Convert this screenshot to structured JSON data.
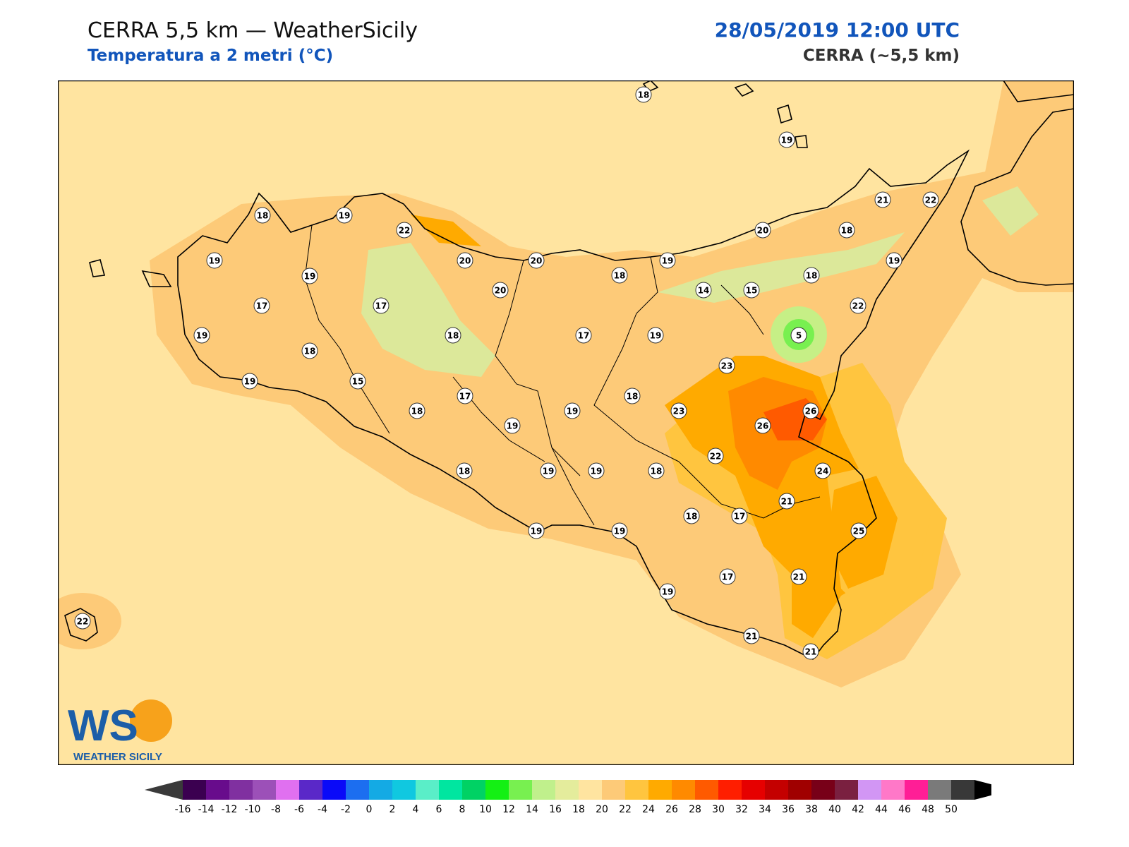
{
  "header": {
    "title": "CERRA 5,5 km — WeatherSicily",
    "subtitle": "Temperatura a 2 metri (°C)",
    "datetime": "28/05/2019 12:00 UTC",
    "model": "CERRA (~5,5 km)"
  },
  "logo": {
    "letters": "WS",
    "text": "WEATHER SICILY"
  },
  "colors": {
    "t16": "#ffe4a0",
    "t18": "#fdca78",
    "t20": "#ffc53f",
    "t22": "#ffaa00",
    "t24": "#ff8a00",
    "t26": "#ff5a00",
    "t14": "#dce89a",
    "t12": "#c6ef86",
    "t8": "#3ee03e",
    "accent": "#1155bb"
  },
  "colorbar": {
    "ticks": [
      "-16",
      "-14",
      "-12",
      "-10",
      "-8",
      "-6",
      "-4",
      "-2",
      "0",
      "2",
      "4",
      "6",
      "8",
      "10",
      "12",
      "14",
      "16",
      "18",
      "20",
      "22",
      "24",
      "26",
      "28",
      "30",
      "32",
      "34",
      "36",
      "38",
      "40",
      "42",
      "44",
      "46",
      "48",
      "50"
    ],
    "colors": [
      "#3b0050",
      "#680c8c",
      "#8030a0",
      "#9c50b8",
      "#e070f0",
      "#5a28c8",
      "#0a0af8",
      "#1c6ef0",
      "#14aae4",
      "#10c8e0",
      "#5aeec8",
      "#00e6a0",
      "#00d264",
      "#14f014",
      "#78f050",
      "#c0f08c",
      "#e4ec9c",
      "#ffe4a0",
      "#fdca78",
      "#ffc53f",
      "#ffaa00",
      "#ff8a00",
      "#ff5a00",
      "#ff1e00",
      "#e60000",
      "#c40000",
      "#a00000",
      "#780018",
      "#7a2040",
      "#d296f4",
      "#ff78c8",
      "#ff1e96",
      "#7a7a7a",
      "#383838"
    ]
  },
  "stations": [
    {
      "v": "18"
    },
    {
      "v": "19"
    },
    {
      "v": "19"
    },
    {
      "v": "21"
    },
    {
      "v": "22"
    },
    {
      "v": "18"
    },
    {
      "v": "19"
    },
    {
      "v": "22"
    },
    {
      "v": "20"
    },
    {
      "v": "18"
    },
    {
      "v": "19"
    },
    {
      "v": "19"
    },
    {
      "v": "20"
    },
    {
      "v": "20"
    },
    {
      "v": "19"
    },
    {
      "v": "18"
    },
    {
      "v": "18"
    },
    {
      "v": "14"
    },
    {
      "v": "15"
    },
    {
      "v": "17"
    },
    {
      "v": "17"
    },
    {
      "v": "20"
    },
    {
      "v": "22"
    },
    {
      "v": "19"
    },
    {
      "v": "18"
    },
    {
      "v": "17"
    },
    {
      "v": "19"
    },
    {
      "v": "5"
    },
    {
      "v": "18"
    },
    {
      "v": "23"
    },
    {
      "v": "19"
    },
    {
      "v": "15"
    },
    {
      "v": "17"
    },
    {
      "v": "18"
    },
    {
      "v": "19"
    },
    {
      "v": "19"
    },
    {
      "v": "18"
    },
    {
      "v": "23"
    },
    {
      "v": "26"
    },
    {
      "v": "26"
    },
    {
      "v": "18"
    },
    {
      "v": "19"
    },
    {
      "v": "19"
    },
    {
      "v": "18"
    },
    {
      "v": "22"
    },
    {
      "v": "24"
    },
    {
      "v": "21"
    },
    {
      "v": "18"
    },
    {
      "v": "17"
    },
    {
      "v": "19"
    },
    {
      "v": "19"
    },
    {
      "v": "25"
    },
    {
      "v": "19"
    },
    {
      "v": "17"
    },
    {
      "v": "21"
    },
    {
      "v": "21"
    },
    {
      "v": "21"
    },
    {
      "v": "22"
    }
  ]
}
